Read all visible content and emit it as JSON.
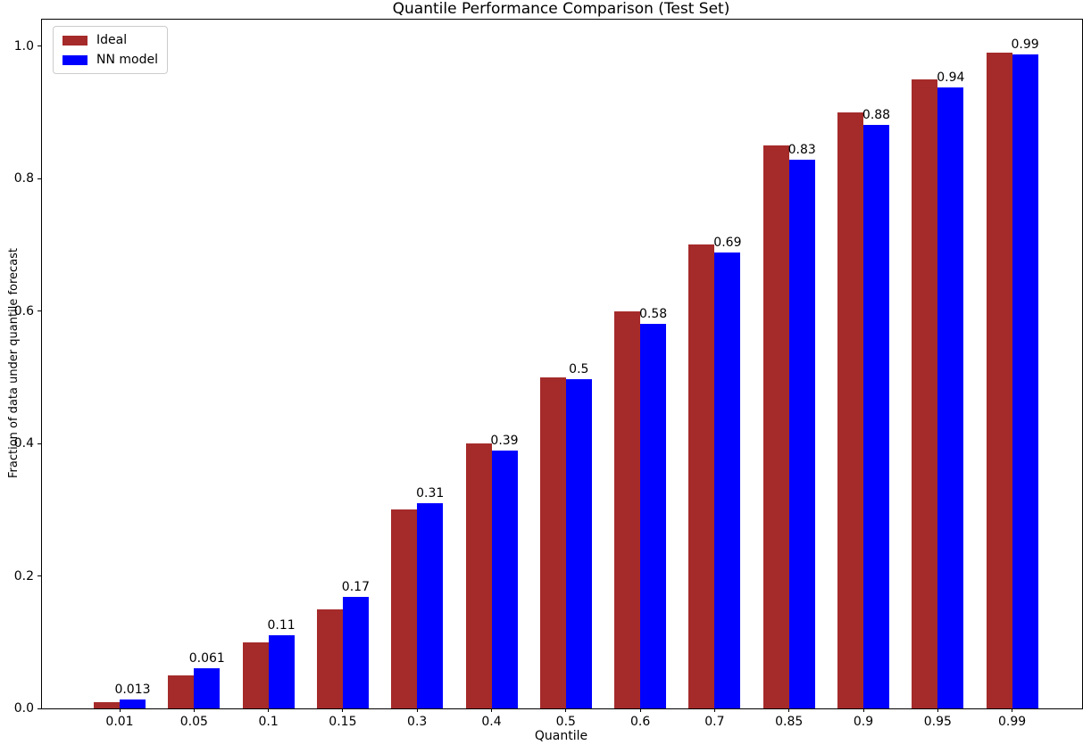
{
  "chart_data": {
    "type": "bar",
    "title": "Quantile Performance Comparison (Test Set)",
    "xlabel": "Quantile",
    "ylabel": "Fraction of data under quantile forecast",
    "categories": [
      "0.01",
      "0.05",
      "0.1",
      "0.15",
      "0.3",
      "0.4",
      "0.5",
      "0.6",
      "0.7",
      "0.85",
      "0.9",
      "0.95",
      "0.99"
    ],
    "series": [
      {
        "name": "Ideal",
        "color": "#a52a2a",
        "values": [
          0.01,
          0.05,
          0.1,
          0.15,
          0.3,
          0.4,
          0.5,
          0.6,
          0.7,
          0.85,
          0.9,
          0.95,
          0.99
        ]
      },
      {
        "name": "NN model",
        "color": "#0000ff",
        "values": [
          0.013,
          0.061,
          0.11,
          0.168,
          0.31,
          0.39,
          0.497,
          0.58,
          0.688,
          0.828,
          0.881,
          0.937,
          0.987
        ],
        "bar_labels": [
          "0.013",
          "0.061",
          "0.11",
          "0.17",
          "0.31",
          "0.39",
          "0.5",
          "0.58",
          "0.69",
          "0.83",
          "0.88",
          "0.94",
          "0.99"
        ]
      }
    ],
    "ylim": [
      0,
      1.04
    ],
    "yticks": [
      0.0,
      0.2,
      0.4,
      0.6,
      0.8,
      1.0
    ],
    "ytick_labels": [
      "0.0",
      "0.2",
      "0.4",
      "0.6",
      "0.8",
      "1.0"
    ],
    "legend": {
      "position": "upper left"
    },
    "grid": false,
    "axis_color": "#000000",
    "text_color": "#000000",
    "background": "#ffffff"
  }
}
